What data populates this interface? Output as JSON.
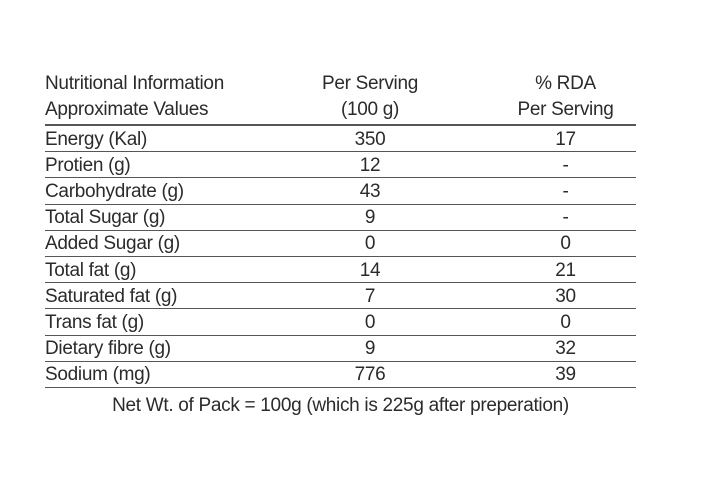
{
  "table": {
    "header": {
      "col1_line1": "Nutritional Information",
      "col1_line2": "Approximate Values",
      "col2_line1": "Per Serving",
      "col2_line2": "(100 g)",
      "col3_line1": "% RDA",
      "col3_line2": "Per Serving"
    },
    "rows": [
      {
        "label": "Energy (Kal)",
        "per_serving": "350",
        "rda": "17"
      },
      {
        "label": "Protien (g)",
        "per_serving": "12",
        "rda": "-"
      },
      {
        "label": "Carbohydrate (g)",
        "per_serving": "43",
        "rda": "-"
      },
      {
        "label": "Total Sugar (g)",
        "per_serving": "9",
        "rda": "-"
      },
      {
        "label": "Added Sugar (g)",
        "per_serving": "0",
        "rda": "0"
      },
      {
        "label": "Total fat (g)",
        "per_serving": "14",
        "rda": "21"
      },
      {
        "label": "Saturated fat (g)",
        "per_serving": "7",
        "rda": "30"
      },
      {
        "label": "Trans fat (g)",
        "per_serving": "0",
        "rda": "0"
      },
      {
        "label": "Dietary fibre (g)",
        "per_serving": "9",
        "rda": "32"
      },
      {
        "label": "Sodium (mg)",
        "per_serving": "776",
        "rda": "39"
      }
    ]
  },
  "footer": {
    "text": "Net Wt. of Pack = 100g (which is 225g after preperation)"
  },
  "colors": {
    "text": "#2b2b2b",
    "rule": "#565656",
    "background": "#ffffff"
  }
}
